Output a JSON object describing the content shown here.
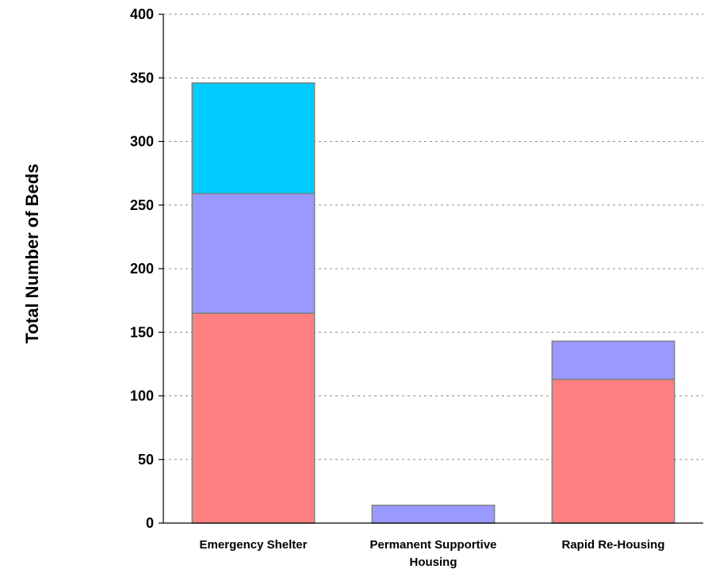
{
  "chart_data": {
    "type": "bar",
    "stacked": true,
    "categories": [
      [
        "Emergency Shelter"
      ],
      [
        "Permanent Supportive",
        "Housing"
      ],
      [
        "Rapid Re-Housing"
      ]
    ],
    "series": [
      {
        "color": "#ff8080",
        "values": [
          165,
          0,
          113
        ]
      },
      {
        "color": "#9999ff",
        "values": [
          94,
          14,
          30
        ]
      },
      {
        "color": "#00ccff",
        "values": [
          87,
          0,
          0
        ]
      }
    ],
    "ylabel": "Total Number of Beds",
    "ylim": [
      0,
      400
    ],
    "yticks": [
      0,
      50,
      100,
      150,
      200,
      250,
      300,
      350,
      400
    ],
    "grid": true,
    "legend": "none"
  }
}
